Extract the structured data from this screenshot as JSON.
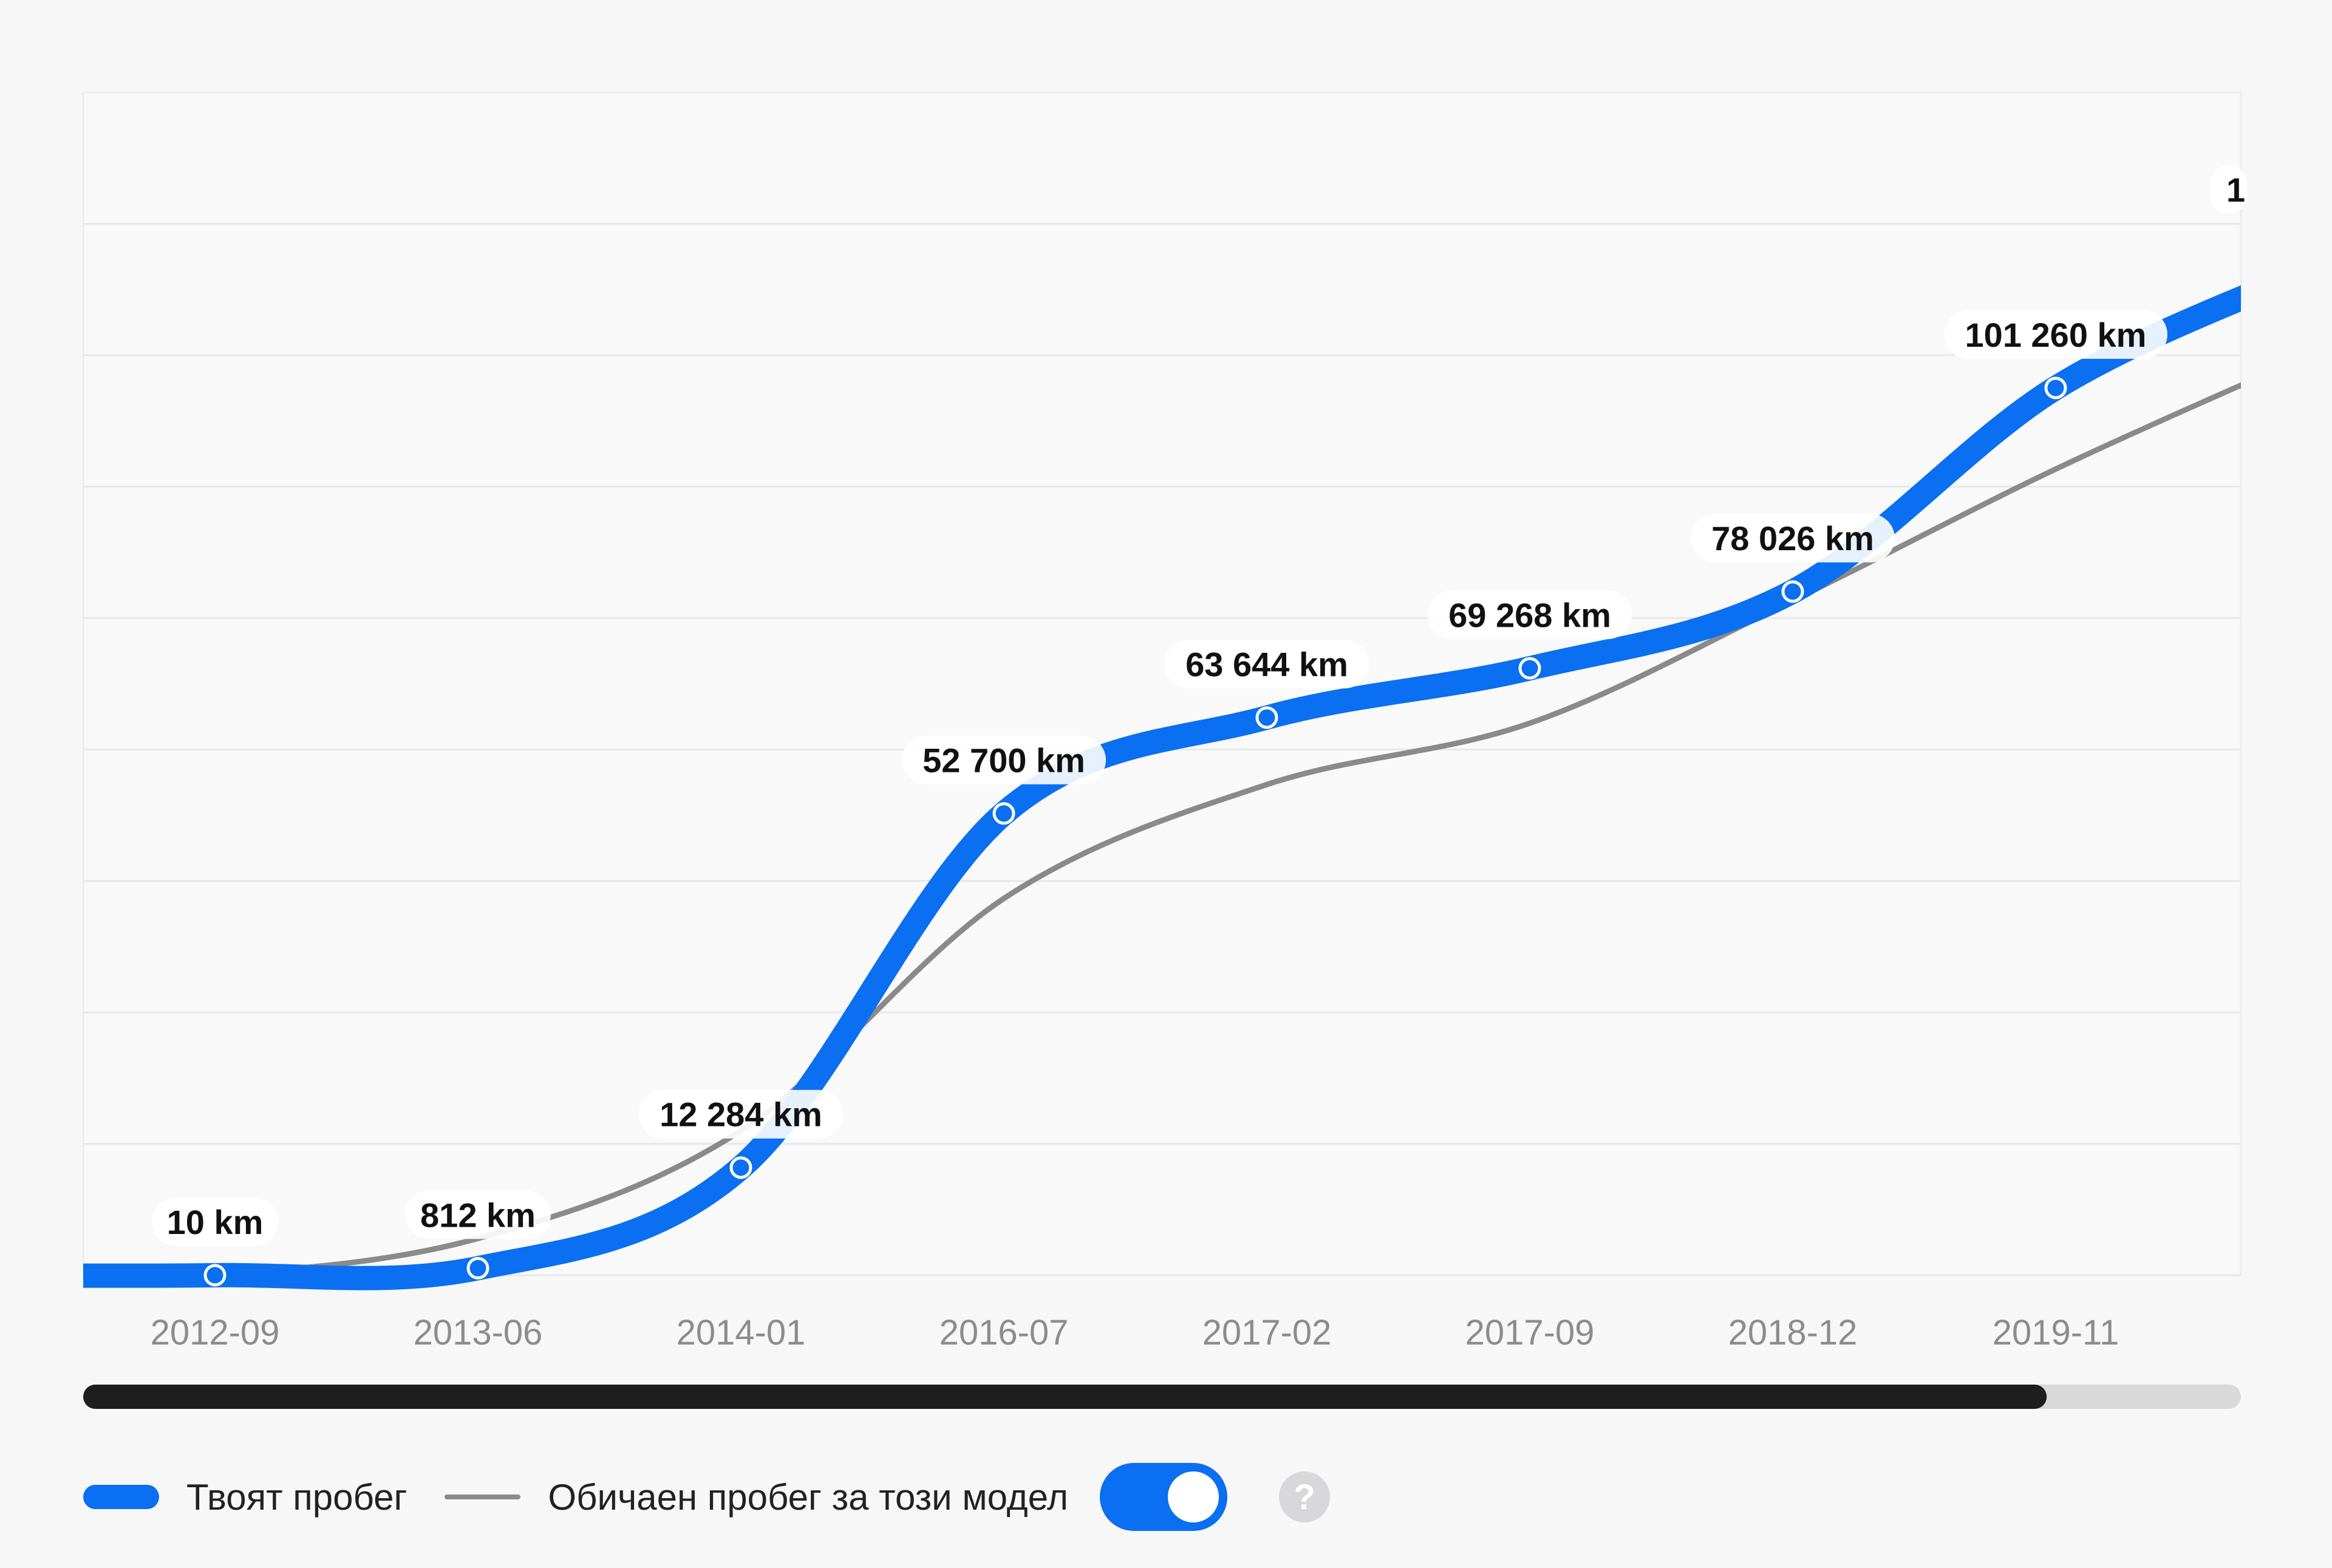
{
  "chart_data": {
    "type": "line",
    "categories": [
      "2012-09",
      "2013-06",
      "2014-01",
      "2016-07",
      "2017-02",
      "2017-09",
      "2018-12",
      "2019-11"
    ],
    "series": [
      {
        "name": "Твоят пробег",
        "values": [
          10,
          812,
          12284,
          52700,
          63644,
          69268,
          78026,
          101260
        ],
        "labels": [
          "10 km",
          "812 km",
          "12 284 km",
          "52 700 km",
          "63 644 km",
          "69 268 km",
          "78 026 km",
          "101 260 km"
        ],
        "color": "#0a6ff0",
        "next_label_partial": "1"
      },
      {
        "name": "Обичаен пробег за този модел",
        "values": [
          100,
          4200,
          16500,
          43000,
          56000,
          63000,
          77000,
          92000
        ],
        "color": "#8a8a8a"
      }
    ],
    "ylim": [
      0,
      135000
    ],
    "grid": true,
    "legend": "bottom-left",
    "scroll_progress": 0.91
  },
  "legend": {
    "series1_label": "Твоят пробег",
    "series2_label": "Обичаен пробег за този модел",
    "toggle_on": true,
    "help_symbol": "?"
  },
  "colors": {
    "accent": "#0a6ff0",
    "comparison": "#8a8a8a",
    "scrollbar_thumb": "#1e1e1e",
    "scrollbar_track": "#d9d9d9",
    "background": "#f7f7f8"
  }
}
